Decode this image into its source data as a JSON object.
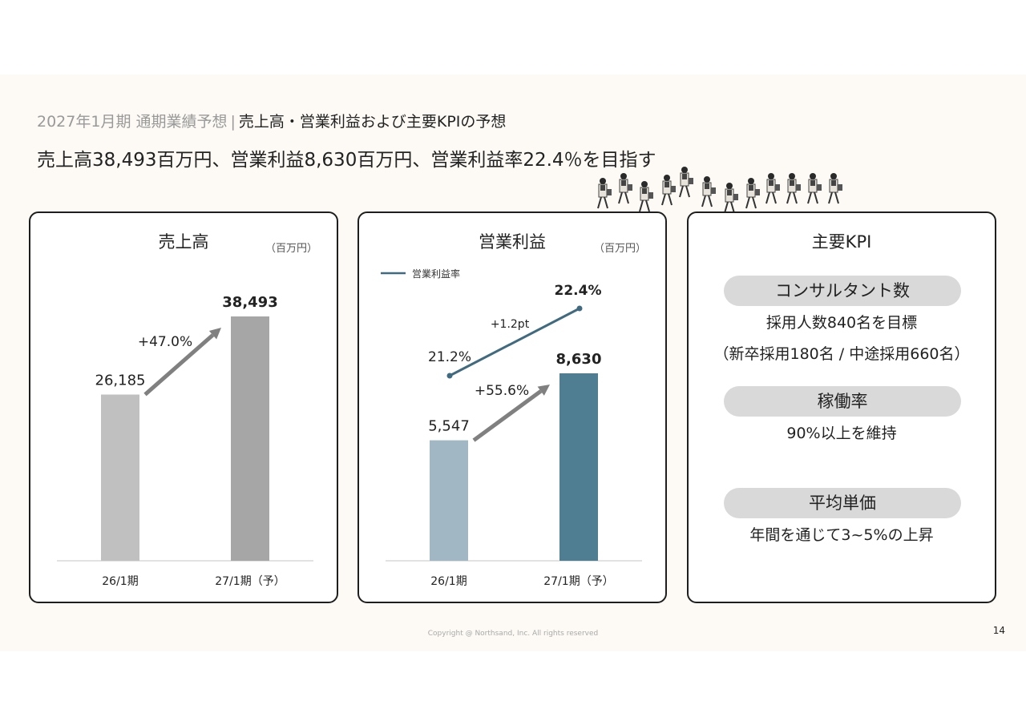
{
  "header": {
    "breadcrumb_period": "2027年1月期 通期業績予想",
    "breadcrumb_sep": "|",
    "breadcrumb_topic": "売上高・営業利益および主要KPIの予想",
    "headline": "売上高38,493百万円、営業利益8,630百万円、営業利益率22.4％を目指す"
  },
  "chart_data": [
    {
      "type": "bar",
      "title": "売上高",
      "unit": "（百万円）",
      "categories": [
        "26/1期",
        "27/1期（予）"
      ],
      "values": [
        26185,
        38493
      ],
      "value_labels": [
        "26,185",
        "38,493"
      ],
      "growth_label": "+47.0%",
      "bar_colors": [
        "#c0c0c0",
        "#a6a6a6"
      ],
      "ylim": [
        0,
        45000
      ]
    },
    {
      "type": "bar",
      "title": "営業利益",
      "unit": "（百万円）",
      "categories": [
        "26/1期",
        "27/1期（予）"
      ],
      "values": [
        5547,
        8630
      ],
      "value_labels": [
        "5,547",
        "8,630"
      ],
      "growth_label": "+55.6%",
      "bar_colors": [
        "#a1b7c4",
        "#4f7d91"
      ],
      "ylim": [
        0,
        15000
      ],
      "line_series": {
        "name": "営業利益率",
        "values": [
          21.2,
          22.4
        ],
        "value_labels": [
          "21.2%",
          "22.4%"
        ],
        "change_label": "+1.2pt",
        "color": "#3f6a80"
      }
    }
  ],
  "kpi": {
    "title": "主要KPI",
    "items": [
      {
        "label": "コンサルタント数",
        "lines": [
          "採用人数840名を目標",
          "（新卒採用180名 / 中途採用660名）"
        ]
      },
      {
        "label": "稼働率",
        "lines": [
          "90%以上を維持"
        ]
      },
      {
        "label": "平均単価",
        "lines": [
          "年間を通じて3~5%の上昇"
        ]
      }
    ]
  },
  "footer": {
    "copyright": "Copyright @ Northsand, Inc. All rights reserved",
    "page_number": "14"
  }
}
